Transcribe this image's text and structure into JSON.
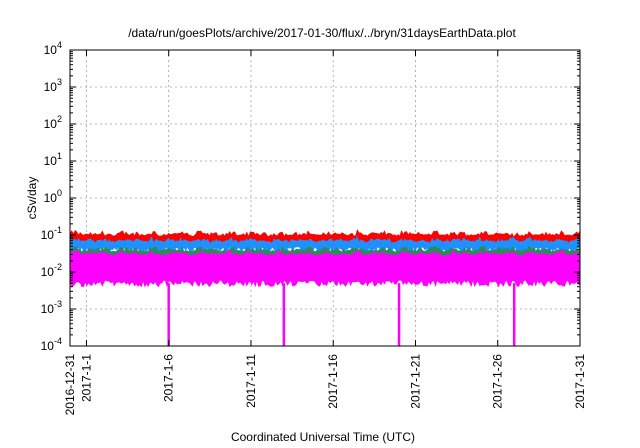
{
  "chart_data": {
    "type": "area",
    "title": "/data/run/goesPlots/archive/2017-01-30/flux/../bryn/31daysEarthData.plot",
    "xlabel": "Coordinated Universal Time (UTC)",
    "ylabel": "cSv/day",
    "yscale": "log",
    "ylim": [
      0.0001,
      10000
    ],
    "xlim": [
      "2016-12-31",
      "2017-01-31"
    ],
    "grid": true,
    "yticks": [
      {
        "value": 0.0001,
        "base": "10",
        "exp": "-4"
      },
      {
        "value": 0.001,
        "base": "10",
        "exp": "-3"
      },
      {
        "value": 0.01,
        "base": "10",
        "exp": "-2"
      },
      {
        "value": 0.1,
        "base": "10",
        "exp": "-1"
      },
      {
        "value": 1,
        "base": "10",
        "exp": "0"
      },
      {
        "value": 10,
        "base": "10",
        "exp": "1"
      },
      {
        "value": 100,
        "base": "10",
        "exp": "2"
      },
      {
        "value": 1000,
        "base": "10",
        "exp": "3"
      },
      {
        "value": 10000,
        "base": "10",
        "exp": "4"
      }
    ],
    "xticks": [
      {
        "date": "2016-12-31",
        "label": "2016-12-31"
      },
      {
        "date": "2017-01-01",
        "label": "2017-1-1"
      },
      {
        "date": "2017-01-06",
        "label": "2017-1-6"
      },
      {
        "date": "2017-01-11",
        "label": "2017-1-11"
      },
      {
        "date": "2017-01-16",
        "label": "2017-1-16"
      },
      {
        "date": "2017-01-21",
        "label": "2017-1-21"
      },
      {
        "date": "2017-01-26",
        "label": "2017-1-26"
      },
      {
        "date": "2017-01-31",
        "label": "2017-1-31"
      }
    ],
    "series": [
      {
        "color": "#ff0000",
        "low": 0.06,
        "high": 0.12
      },
      {
        "color": "#1e90ff",
        "low": 0.04,
        "high": 0.08
      },
      {
        "color": "#2e8b57",
        "low": 0.025,
        "high": 0.045
      },
      {
        "color": "#ff00ff",
        "low": 0.005,
        "high": 0.035
      }
    ],
    "dips": [
      {
        "date": "2017-01-06",
        "value": 0.0001
      },
      {
        "date": "2017-01-13",
        "value": 0.0001
      },
      {
        "date": "2017-01-20",
        "value": 0.0001
      },
      {
        "date": "2017-01-27",
        "value": 0.0001
      }
    ]
  }
}
